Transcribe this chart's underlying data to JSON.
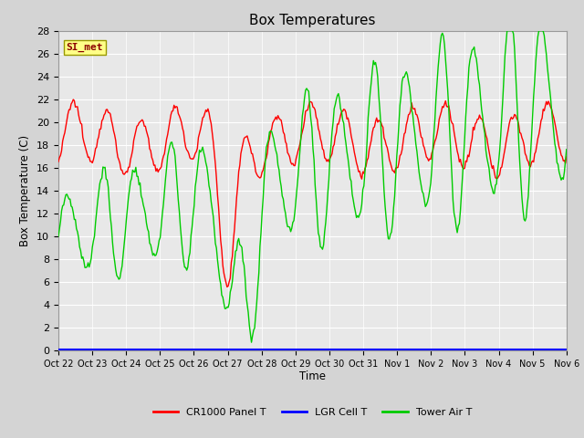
{
  "title": "Box Temperatures",
  "ylabel": "Box Temperature (C)",
  "xlabel": "Time",
  "ylim": [
    0,
    28
  ],
  "yticks": [
    0,
    2,
    4,
    6,
    8,
    10,
    12,
    14,
    16,
    18,
    20,
    22,
    24,
    26,
    28
  ],
  "xtick_labels": [
    "Oct 22",
    "Oct 23",
    "Oct 24",
    "Oct 25",
    "Oct 26",
    "Oct 27",
    "Oct 28",
    "Oct 29",
    "Oct 30",
    "Oct 31",
    "Nov 1",
    "Nov 2",
    "Nov 3",
    "Nov 4",
    "Nov 5",
    "Nov 6"
  ],
  "bg_color": "#d4d4d4",
  "plot_bg_color": "#e8e8e8",
  "grid_color": "#ffffff",
  "annotation_text": "SI_met",
  "annotation_color": "#8b0000",
  "annotation_bg": "#ffff88",
  "legend_entries": [
    "CR1000 Panel T",
    "LGR Cell T",
    "Tower Air T"
  ],
  "legend_colors": [
    "#ff0000",
    "#0000ff",
    "#00cc00"
  ],
  "cr1000_color": "#ff0000",
  "lgr_color": "#0000ff",
  "tower_color": "#00cc00",
  "num_points": 480,
  "figwidth": 6.4,
  "figheight": 4.8,
  "dpi": 100
}
